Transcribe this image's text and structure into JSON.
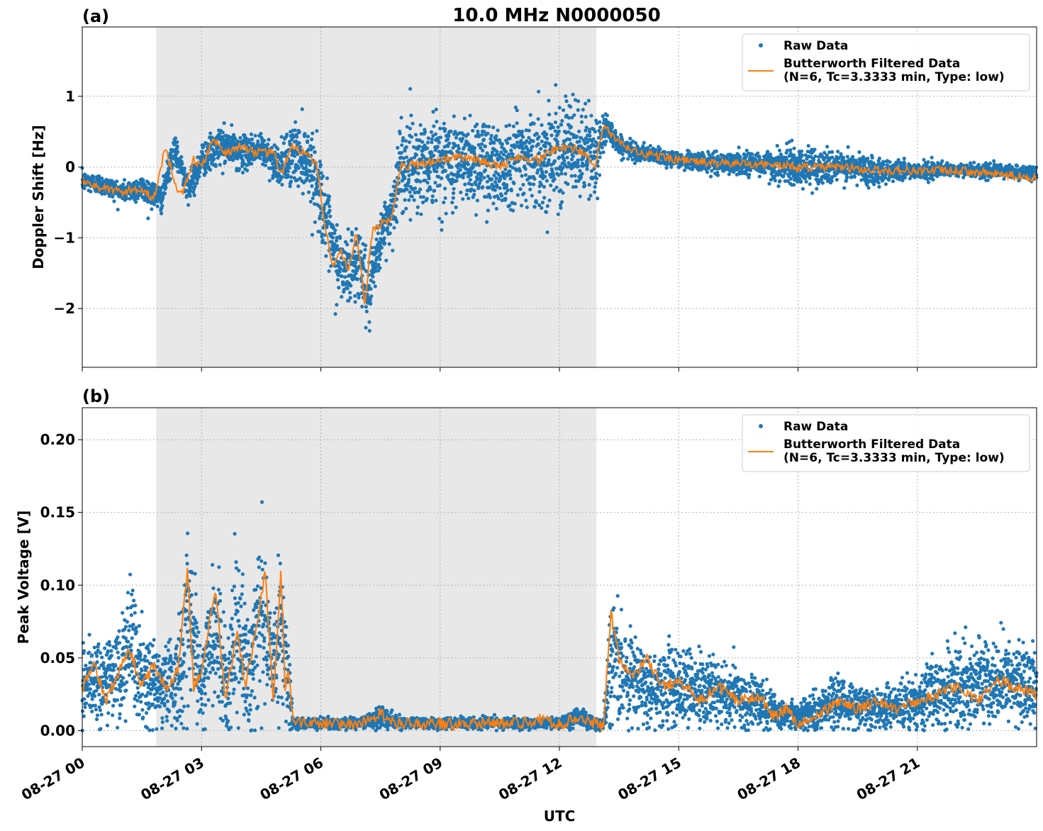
{
  "figure": {
    "title": "10.0 MHz N0000050",
    "xlabel": "UTC"
  },
  "chart_data": [
    {
      "type": "scatter",
      "panel_label": "(a)",
      "title": "10.0 MHz N0000050",
      "ylabel": "Doppler Shift [Hz]",
      "xlabel": "",
      "xlim_hours": [
        0,
        24
      ],
      "ylim": [
        -2.83,
        1.98
      ],
      "y_ticks": [
        -2,
        -1,
        0,
        1
      ],
      "y_tick_labels": [
        "−2",
        "−1",
        "0",
        "1"
      ],
      "x_ticks_hours": [
        0,
        3,
        6,
        9,
        12,
        15,
        18,
        21
      ],
      "shaded_region_hours": [
        1.86,
        12.93
      ],
      "grid": true,
      "legend_placement": "top-right",
      "series": [
        {
          "name": "Raw Data",
          "style": "points",
          "color": "#1f77b4",
          "x_hours": [
            0,
            0.5,
            1,
            1.5,
            2,
            2.3,
            2.7,
            3,
            3.5,
            4,
            4.5,
            5,
            5.3,
            5.7,
            6,
            6.3,
            6.6,
            7,
            7.2,
            7.5,
            7.8,
            8,
            8.5,
            9,
            9.5,
            10,
            10.5,
            11,
            11.5,
            12,
            12.5,
            13,
            13.2,
            13.5,
            14,
            15,
            16,
            17,
            18,
            19,
            20,
            21,
            22,
            23,
            24
          ],
          "y_center": [
            -0.2,
            -0.25,
            -0.35,
            -0.3,
            -0.45,
            0.25,
            -0.3,
            0.1,
            0.3,
            0.2,
            0.25,
            0.0,
            0.2,
            0.1,
            -0.4,
            -1.2,
            -1.5,
            -1.3,
            -1.9,
            -1.0,
            -0.6,
            0.0,
            0.05,
            0.1,
            0.05,
            0.1,
            0.0,
            0.2,
            0.05,
            0.3,
            0.2,
            0.2,
            0.6,
            0.3,
            0.2,
            0.1,
            0.05,
            0.05,
            0.0,
            0.0,
            -0.05,
            -0.05,
            -0.05,
            -0.05,
            -0.1
          ],
          "y_spread": [
            0.15,
            0.15,
            0.15,
            0.2,
            0.2,
            0.2,
            0.25,
            0.25,
            0.3,
            0.25,
            0.25,
            0.3,
            0.5,
            0.5,
            0.6,
            0.6,
            0.6,
            0.55,
            0.5,
            0.4,
            0.5,
            0.7,
            0.7,
            0.7,
            0.7,
            0.7,
            0.7,
            0.7,
            0.7,
            0.8,
            0.7,
            0.6,
            0.2,
            0.15,
            0.12,
            0.12,
            0.15,
            0.2,
            0.3,
            0.25,
            0.2,
            0.12,
            0.1,
            0.1,
            0.1
          ]
        },
        {
          "name": "Butterworth Filtered Data\n(N=6, Tc=3.3333 min, Type: low)",
          "style": "line",
          "color": "#ff7f0e",
          "x_hours": [
            0,
            0.5,
            1,
            1.5,
            1.8,
            2.1,
            2.3,
            2.5,
            2.8,
            3.0,
            3.3,
            3.6,
            4.0,
            4.4,
            4.8,
            5.0,
            5.3,
            5.6,
            5.9,
            6.1,
            6.3,
            6.5,
            6.7,
            6.9,
            7.1,
            7.3,
            7.5,
            7.8,
            8.0,
            8.5,
            9.0,
            9.5,
            10.0,
            10.5,
            11.0,
            11.5,
            12.0,
            12.5,
            12.9,
            13.1,
            13.3,
            13.6,
            14.0,
            15.0,
            16.0,
            17.0,
            18.0,
            19.0,
            20.0,
            21.0,
            22.0,
            23.0,
            24.0
          ],
          "y": [
            -0.2,
            -0.3,
            -0.35,
            -0.3,
            -0.45,
            0.3,
            -0.2,
            -0.4,
            0.1,
            0.0,
            0.4,
            0.2,
            0.3,
            0.2,
            0.2,
            -0.1,
            0.3,
            0.2,
            0.0,
            -0.8,
            -1.4,
            -1.2,
            -1.5,
            -0.9,
            -1.95,
            -0.9,
            -0.8,
            -0.7,
            0.0,
            0.05,
            0.1,
            0.15,
            0.1,
            0.0,
            0.15,
            0.1,
            0.3,
            0.25,
            0.0,
            0.6,
            0.45,
            0.3,
            0.2,
            0.1,
            0.05,
            0.05,
            0.0,
            0.0,
            -0.05,
            -0.05,
            -0.05,
            -0.1,
            -0.15
          ]
        }
      ]
    },
    {
      "type": "scatter",
      "panel_label": "(b)",
      "ylabel": "Peak Voltage [V]",
      "xlabel": "UTC",
      "xlim_hours": [
        0,
        24
      ],
      "ylim": [
        -0.011,
        0.222
      ],
      "y_ticks": [
        0.0,
        0.05,
        0.1,
        0.15,
        0.2
      ],
      "y_tick_labels": [
        "0.00",
        "0.05",
        "0.10",
        "0.15",
        "0.20"
      ],
      "x_ticks_hours": [
        0,
        3,
        6,
        9,
        12,
        15,
        18,
        21
      ],
      "x_tick_labels": [
        "08-27 00",
        "08-27 03",
        "08-27 06",
        "08-27 09",
        "08-27 12",
        "08-27 15",
        "08-27 18",
        "08-27 21"
      ],
      "shaded_region_hours": [
        1.86,
        12.93
      ],
      "grid": true,
      "legend_placement": "top-right",
      "series": [
        {
          "name": "Raw Data",
          "style": "points",
          "color": "#1f77b4",
          "x_hours": [
            0,
            0.5,
            1,
            1.2,
            1.5,
            2,
            2.5,
            2.65,
            3,
            3.3,
            3.6,
            3.9,
            4.2,
            4.5,
            4.8,
            5.0,
            5.2,
            5.3,
            6,
            7,
            7.5,
            8,
            9,
            10,
            11,
            12,
            12.5,
            12.9,
            13.1,
            13.3,
            13.6,
            14,
            14.5,
            15,
            16,
            17,
            17.5,
            18,
            19,
            20,
            21,
            22,
            23,
            24
          ],
          "y_center": [
            0.03,
            0.035,
            0.04,
            0.06,
            0.035,
            0.03,
            0.04,
            0.09,
            0.03,
            0.07,
            0.03,
            0.07,
            0.035,
            0.09,
            0.04,
            0.08,
            0.03,
            0.005,
            0.005,
            0.005,
            0.01,
            0.005,
            0.005,
            0.005,
            0.005,
            0.005,
            0.01,
            0.005,
            0.003,
            0.05,
            0.04,
            0.035,
            0.03,
            0.03,
            0.025,
            0.02,
            0.01,
            0.01,
            0.02,
            0.015,
            0.02,
            0.03,
            0.035,
            0.03
          ],
          "y_spread": [
            0.025,
            0.03,
            0.035,
            0.05,
            0.035,
            0.03,
            0.04,
            0.06,
            0.03,
            0.06,
            0.035,
            0.06,
            0.04,
            0.06,
            0.04,
            0.05,
            0.03,
            0.004,
            0.004,
            0.004,
            0.008,
            0.004,
            0.004,
            0.004,
            0.004,
            0.004,
            0.008,
            0.004,
            0.003,
            0.05,
            0.035,
            0.03,
            0.03,
            0.03,
            0.025,
            0.02,
            0.01,
            0.01,
            0.02,
            0.015,
            0.02,
            0.03,
            0.03,
            0.03
          ]
        },
        {
          "name": "Butterworth Filtered Data\n(N=6, Tc=3.3333 min, Type: low)",
          "style": "line",
          "color": "#ff7f0e",
          "x_hours": [
            0,
            0.3,
            0.6,
            0.9,
            1.2,
            1.5,
            1.8,
            2.1,
            2.4,
            2.65,
            2.8,
            3.0,
            3.35,
            3.6,
            3.9,
            4.1,
            4.4,
            4.6,
            4.8,
            5.0,
            5.1,
            5.2,
            5.3,
            6.0,
            7.0,
            7.5,
            8.0,
            9.0,
            10.0,
            11.0,
            11.5,
            12.0,
            12.5,
            12.9,
            13.1,
            13.3,
            13.5,
            13.8,
            14.2,
            14.6,
            15.0,
            15.5,
            16.0,
            16.5,
            17.0,
            17.4,
            17.7,
            18.0,
            18.5,
            19.0,
            19.5,
            20.0,
            20.5,
            21.0,
            21.5,
            22.0,
            22.5,
            23.0,
            23.5,
            24.0
          ],
          "y": [
            0.03,
            0.045,
            0.02,
            0.04,
            0.055,
            0.03,
            0.045,
            0.03,
            0.04,
            0.11,
            0.03,
            0.04,
            0.1,
            0.02,
            0.07,
            0.03,
            0.075,
            0.11,
            0.02,
            0.11,
            0.03,
            0.04,
            0.005,
            0.005,
            0.004,
            0.012,
            0.004,
            0.005,
            0.005,
            0.005,
            0.008,
            0.004,
            0.01,
            0.005,
            0.002,
            0.08,
            0.05,
            0.035,
            0.05,
            0.03,
            0.035,
            0.02,
            0.03,
            0.02,
            0.025,
            0.01,
            0.015,
            0.005,
            0.01,
            0.02,
            0.015,
            0.02,
            0.015,
            0.02,
            0.025,
            0.03,
            0.02,
            0.035,
            0.03,
            0.025
          ]
        }
      ]
    }
  ],
  "colors": {
    "raw": "#1f77b4",
    "filtered": "#ff7f0e",
    "shade": "#e8e8e8"
  }
}
